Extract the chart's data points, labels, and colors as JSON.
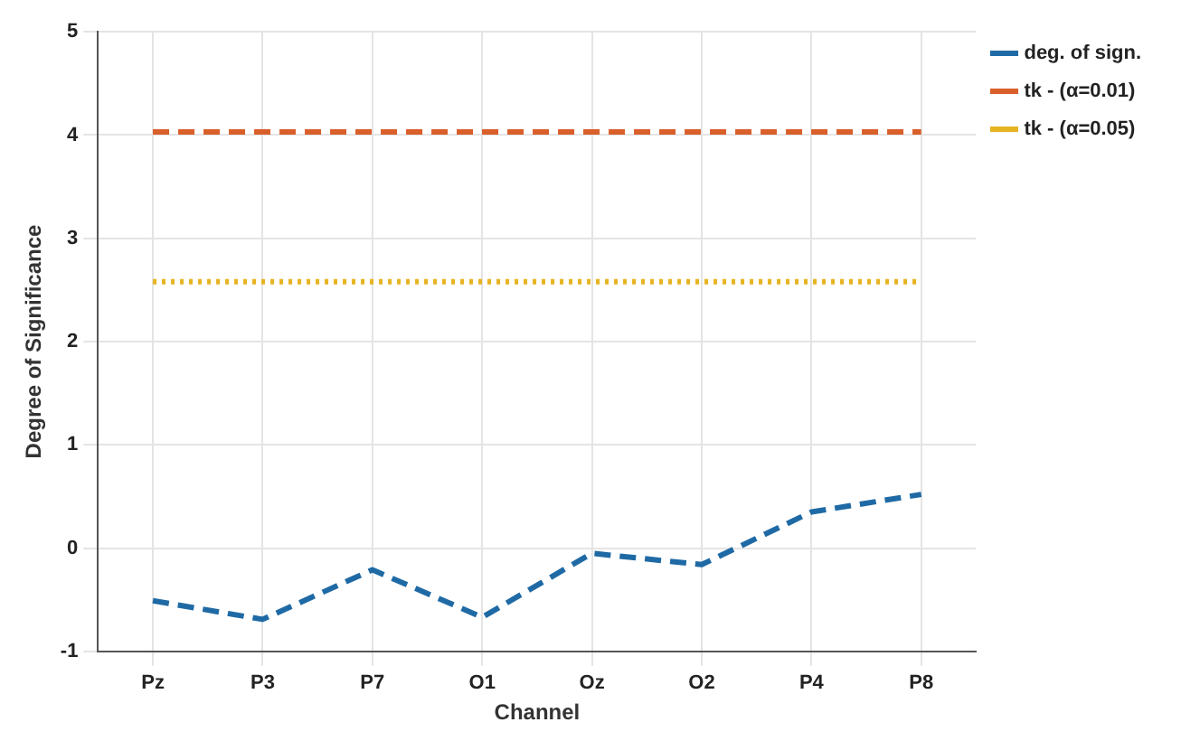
{
  "chart_data": {
    "type": "line",
    "xlabel": "Channel",
    "ylabel": "Degree of Significance",
    "categories": [
      "Pz",
      "P3",
      "P7",
      "O1",
      "Oz",
      "O2",
      "P4",
      "P8"
    ],
    "series": [
      {
        "name": "deg. of sign.",
        "color": "#1f6aa5",
        "line_style": "dashed",
        "values": [
          -0.51,
          -0.69,
          -0.21,
          -0.67,
          -0.05,
          -0.16,
          0.35,
          0.52
        ]
      },
      {
        "name": "tk - (α=0.01)",
        "color": "#d95f2b",
        "line_style": "dashed",
        "values": [
          4.03,
          4.03,
          4.03,
          4.03,
          4.03,
          4.03,
          4.03,
          4.03
        ]
      },
      {
        "name": "tk - (α=0.05)",
        "color": "#e6b422",
        "line_style": "dotted",
        "values": [
          2.58,
          2.58,
          2.58,
          2.58,
          2.58,
          2.58,
          2.58,
          2.58
        ]
      }
    ],
    "ylim": [
      -1,
      5
    ],
    "yticks": [
      -1,
      0,
      1,
      2,
      3,
      4,
      5
    ],
    "grid": true,
    "legend": "top right",
    "marker": "none"
  }
}
